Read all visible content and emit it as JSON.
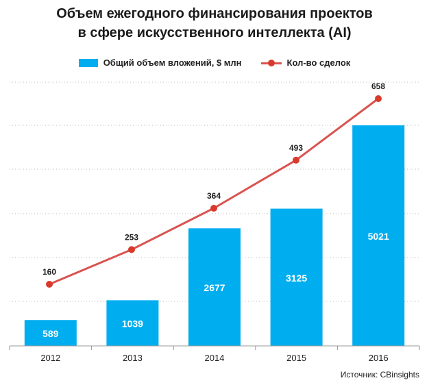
{
  "title_line1": "Объем ежегодного финансирования проектов",
  "title_line2": "в сфере искусственного интеллекта (AI)",
  "legend": {
    "bar_label": "Общий объем вложений, $ млн",
    "line_label": "Кол-во сделок"
  },
  "source": "Источник: CBinsights",
  "colors": {
    "bar": "#00AEEF",
    "line": "#D9534F",
    "marker": "#D93A2B"
  },
  "chart_data": {
    "type": "bar",
    "categories": [
      "2012",
      "2013",
      "2014",
      "2015",
      "2016"
    ],
    "series": [
      {
        "name": "Общий объем вложений, $ млн",
        "type": "bar",
        "values": [
          589,
          1039,
          2677,
          3125,
          5021
        ]
      },
      {
        "name": "Кол-во сделок",
        "type": "line",
        "values": [
          160,
          253,
          364,
          493,
          658
        ]
      }
    ],
    "title": "Объем ежегодного финансирования проектов в сфере искусственного интеллекта (AI)",
    "grid": true,
    "legend_position": "top"
  }
}
